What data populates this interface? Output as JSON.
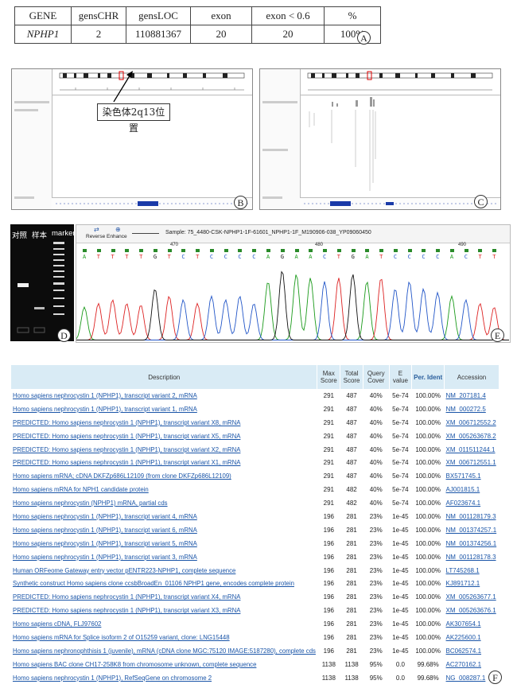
{
  "panelA": {
    "headers": [
      "GENE",
      "gensCHR",
      "gensLOC",
      "exon",
      "exon < 0.6",
      "%"
    ],
    "row": [
      "NPHP1",
      "2",
      "110881367",
      "20",
      "20",
      "100%"
    ]
  },
  "panelB": {
    "annotation": "染色体2q13位置"
  },
  "panelD": {
    "lane_labels": [
      "对照",
      "样本",
      "marker"
    ]
  },
  "panelE": {
    "toolbar": [
      "Reverse",
      "Enhance"
    ],
    "sample": "Sample: 75_4480-CSK-NPHP1-1F-61601_NPHP1-1F_M190906-038_YP09060450",
    "positions": [
      "470",
      "480",
      "490"
    ],
    "bases": [
      "A",
      "T",
      "T",
      "T",
      "T",
      "G",
      "T",
      "C",
      "T",
      "C",
      "C",
      "C",
      "C",
      "A",
      "G",
      "A",
      "A",
      "C",
      "T",
      "G",
      "A",
      "T",
      "C",
      "C",
      "C",
      "C",
      "A",
      "C",
      "T",
      "T"
    ]
  },
  "panelF": {
    "headers": [
      "Description",
      "Max Score",
      "Total Score",
      "Query Cover",
      "E value",
      "Per. Ident",
      "Accession"
    ],
    "rows": [
      [
        "Homo sapiens nephrocystin 1 (NPHP1), transcript variant 2, mRNA",
        "291",
        "487",
        "40%",
        "5e-74",
        "100.00%",
        "NM_207181.4"
      ],
      [
        "Homo sapiens nephrocystin 1 (NPHP1), transcript variant 1, mRNA",
        "291",
        "487",
        "40%",
        "5e-74",
        "100.00%",
        "NM_000272.5"
      ],
      [
        "PREDICTED: Homo sapiens nephrocystin 1 (NPHP1), transcript variant X8, mRNA",
        "291",
        "487",
        "40%",
        "5e-74",
        "100.00%",
        "XM_006712552.2"
      ],
      [
        "PREDICTED: Homo sapiens nephrocystin 1 (NPHP1), transcript variant X5, mRNA",
        "291",
        "487",
        "40%",
        "5e-74",
        "100.00%",
        "XM_005263678.2"
      ],
      [
        "PREDICTED: Homo sapiens nephrocystin 1 (NPHP1), transcript variant X2, mRNA",
        "291",
        "487",
        "40%",
        "5e-74",
        "100.00%",
        "XM_011511244.1"
      ],
      [
        "PREDICTED: Homo sapiens nephrocystin 1 (NPHP1), transcript variant X1, mRNA",
        "291",
        "487",
        "40%",
        "5e-74",
        "100.00%",
        "XM_006712551.1"
      ],
      [
        "Homo sapiens mRNA; cDNA DKFZp686L12109 (from clone DKFZp686L12109)",
        "291",
        "487",
        "40%",
        "5e-74",
        "100.00%",
        "BX571745.1"
      ],
      [
        "Homo sapiens mRNA for NPH1 candidate protein",
        "291",
        "482",
        "40%",
        "5e-74",
        "100.00%",
        "AJ001815.1"
      ],
      [
        "Homo sapiens nephrocystin (NPHP1) mRNA, partial cds",
        "291",
        "482",
        "40%",
        "5e-74",
        "100.00%",
        "AF023674.1"
      ],
      [
        "Homo sapiens nephrocystin 1 (NPHP1), transcript variant 4, mRNA",
        "196",
        "281",
        "23%",
        "1e-45",
        "100.00%",
        "NM_001128179.3"
      ],
      [
        "Homo sapiens nephrocystin 1 (NPHP1), transcript variant 6, mRNA",
        "196",
        "281",
        "23%",
        "1e-45",
        "100.00%",
        "NM_001374257.1"
      ],
      [
        "Homo sapiens nephrocystin 1 (NPHP1), transcript variant 5, mRNA",
        "196",
        "281",
        "23%",
        "1e-45",
        "100.00%",
        "NM_001374256.1"
      ],
      [
        "Homo sapiens nephrocystin 1 (NPHP1), transcript variant 3, mRNA",
        "196",
        "281",
        "23%",
        "1e-45",
        "100.00%",
        "NM_001128178.3"
      ],
      [
        "Human ORFeome Gateway entry vector pENTR223-NPHP1, complete sequence",
        "196",
        "281",
        "23%",
        "1e-45",
        "100.00%",
        "LT745268.1"
      ],
      [
        "Synthetic construct Homo sapiens clone ccsbBroadEn_01106 NPHP1 gene, encodes complete protein",
        "196",
        "281",
        "23%",
        "1e-45",
        "100.00%",
        "KJ891712.1"
      ],
      [
        "PREDICTED: Homo sapiens nephrocystin 1 (NPHP1), transcript variant X4, mRNA",
        "196",
        "281",
        "23%",
        "1e-45",
        "100.00%",
        "XM_005263677.1"
      ],
      [
        "PREDICTED: Homo sapiens nephrocystin 1 (NPHP1), transcript variant X3, mRNA",
        "196",
        "281",
        "23%",
        "1e-45",
        "100.00%",
        "XM_005263676.1"
      ],
      [
        "Homo sapiens cDNA, FLJ97602",
        "196",
        "281",
        "23%",
        "1e-45",
        "100.00%",
        "AK307654.1"
      ],
      [
        "Homo sapiens mRNA for Splice isoform 2 of O15259 variant, clone: LNG15448",
        "196",
        "281",
        "23%",
        "1e-45",
        "100.00%",
        "AK225600.1"
      ],
      [
        "Homo sapiens nephronophthisis 1 (juvenile), mRNA (cDNA clone MGC:75120 IMAGE:5187280), complete cds",
        "196",
        "281",
        "23%",
        "1e-45",
        "100.00%",
        "BC062574.1"
      ],
      [
        "Homo sapiens BAC clone CH17-258K8 from chromosome unknown, complete sequence",
        "1138",
        "1138",
        "95%",
        "0.0",
        "99.68%",
        "AC270162.1"
      ],
      [
        "Homo sapiens nephrocystin 1 (NPHP1), RefSeqGene on chromosome 2",
        "1138",
        "1138",
        "95%",
        "0.0",
        "99.68%",
        "NG_008287.1"
      ]
    ]
  },
  "panel_labels": [
    "A",
    "B",
    "C",
    "D",
    "E",
    "F"
  ]
}
